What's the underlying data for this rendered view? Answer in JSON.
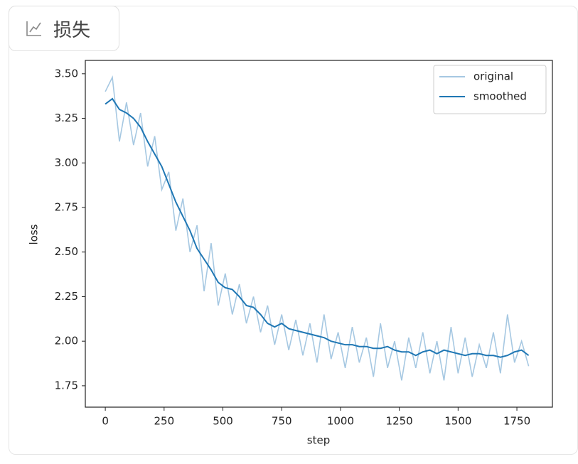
{
  "tab": {
    "label": "损失"
  },
  "chart_data": {
    "type": "line",
    "x_label": "step",
    "y_label": "loss",
    "x": [
      0,
      30,
      60,
      90,
      120,
      150,
      180,
      210,
      240,
      270,
      300,
      330,
      360,
      390,
      420,
      450,
      480,
      510,
      540,
      570,
      600,
      630,
      660,
      690,
      720,
      750,
      780,
      810,
      840,
      870,
      900,
      930,
      960,
      990,
      1020,
      1050,
      1080,
      1110,
      1140,
      1170,
      1200,
      1230,
      1260,
      1290,
      1320,
      1350,
      1380,
      1410,
      1440,
      1470,
      1500,
      1530,
      1560,
      1590,
      1620,
      1650,
      1680,
      1710,
      1740,
      1770,
      1800
    ],
    "series": [
      {
        "name": "original",
        "color": "#a6c8e2",
        "values": [
          3.4,
          3.48,
          3.12,
          3.34,
          3.1,
          3.28,
          2.98,
          3.15,
          2.85,
          2.95,
          2.62,
          2.8,
          2.5,
          2.65,
          2.28,
          2.55,
          2.2,
          2.38,
          2.15,
          2.32,
          2.1,
          2.25,
          2.05,
          2.2,
          1.98,
          2.15,
          1.95,
          2.12,
          1.92,
          2.1,
          1.88,
          2.15,
          1.9,
          2.05,
          1.85,
          2.08,
          1.88,
          2.02,
          1.8,
          2.1,
          1.85,
          2.0,
          1.78,
          2.02,
          1.85,
          2.05,
          1.82,
          2.0,
          1.78,
          2.08,
          1.82,
          2.02,
          1.8,
          1.98,
          1.85,
          2.05,
          1.82,
          2.15,
          1.88,
          2.0,
          1.86
        ]
      },
      {
        "name": "smoothed",
        "color": "#1f77b4",
        "values": [
          3.33,
          3.36,
          3.3,
          3.28,
          3.25,
          3.2,
          3.12,
          3.05,
          2.98,
          2.88,
          2.78,
          2.7,
          2.62,
          2.52,
          2.46,
          2.4,
          2.33,
          2.3,
          2.29,
          2.25,
          2.2,
          2.19,
          2.15,
          2.1,
          2.08,
          2.1,
          2.07,
          2.06,
          2.05,
          2.04,
          2.03,
          2.02,
          2.0,
          1.99,
          1.98,
          1.98,
          1.97,
          1.97,
          1.96,
          1.96,
          1.97,
          1.95,
          1.94,
          1.94,
          1.92,
          1.94,
          1.95,
          1.93,
          1.95,
          1.94,
          1.93,
          1.92,
          1.93,
          1.93,
          1.92,
          1.92,
          1.91,
          1.92,
          1.94,
          1.95,
          1.92
        ]
      }
    ],
    "xlim": [
      -85,
      1901
    ],
    "ylim": [
      1.63,
      3.575
    ],
    "xticks": [
      0,
      250,
      500,
      750,
      1000,
      1250,
      1500,
      1750
    ],
    "yticks": [
      {
        "value": 1.75,
        "label": "1.75"
      },
      {
        "value": 2,
        "label": "2.00"
      },
      2.25,
      {
        "value": 2.5,
        "label": "2.50"
      },
      2.75,
      {
        "value": 3,
        "label": "3.00"
      },
      3.25,
      {
        "value": 3.5,
        "label": "3.50"
      }
    ],
    "legend": "upper right"
  }
}
